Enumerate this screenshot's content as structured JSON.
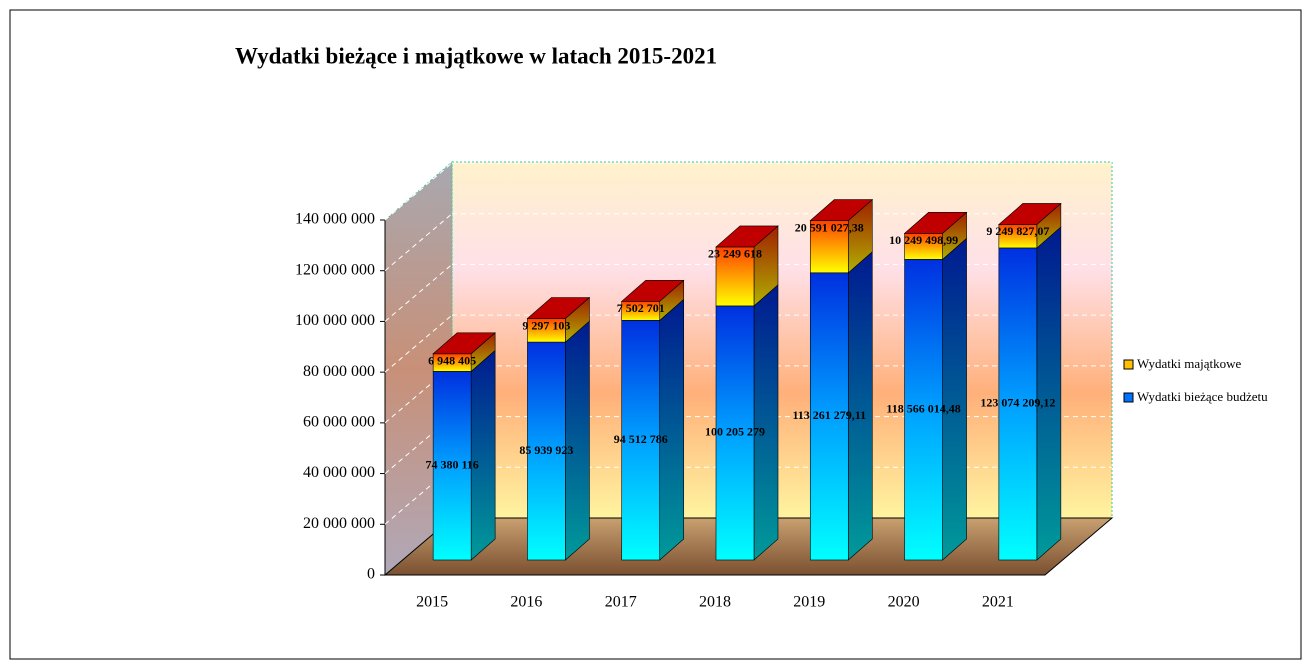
{
  "chart_data": {
    "type": "bar3d_stacked",
    "title": "Wydatki  bieżące i majątkowe w latach 2015-2021",
    "categories": [
      "2015",
      "2016",
      "2017",
      "2018",
      "2019",
      "2020",
      "2021"
    ],
    "series": [
      {
        "name": "Wydatki bieżące budżetu",
        "color": "#0070ff",
        "values": [
          74380116,
          85939923,
          94512786,
          100205279,
          113261279.11,
          118566014.48,
          123074209.12
        ],
        "value_labels": [
          "74 380 116",
          "85 939 923",
          "94 512 786",
          "100 205 279",
          "113 261 279,11",
          "118 566 014,48",
          "123 074 209,12"
        ]
      },
      {
        "name": "Wydatki majątkowe",
        "color": "#ffc000",
        "values": [
          6948405,
          9297103,
          7502701,
          23249618,
          20591027.38,
          10249498.99,
          9249827.07
        ],
        "value_labels": [
          "6 948 405",
          "9 297 103",
          "7 502 701",
          "23 249 618",
          "20 591 027,38",
          "10 249 498,99",
          "9 249 827,07"
        ]
      }
    ],
    "ylim": [
      0,
      140000000
    ],
    "yticks": [
      0,
      {
        "value": 20000000,
        "label": "20 000 000"
      },
      {
        "value": 40000000,
        "label": "40 000 000"
      },
      {
        "value": 60000000,
        "label": "60 000 000"
      },
      {
        "value": 80000000,
        "label": "80 000 000"
      },
      {
        "value": 100000000,
        "label": "100 000 000"
      },
      {
        "value": 120000000,
        "label": "120 000 000"
      },
      {
        "value": 140000000,
        "label": "140 000 000"
      }
    ],
    "grid": true,
    "legend": "right"
  }
}
